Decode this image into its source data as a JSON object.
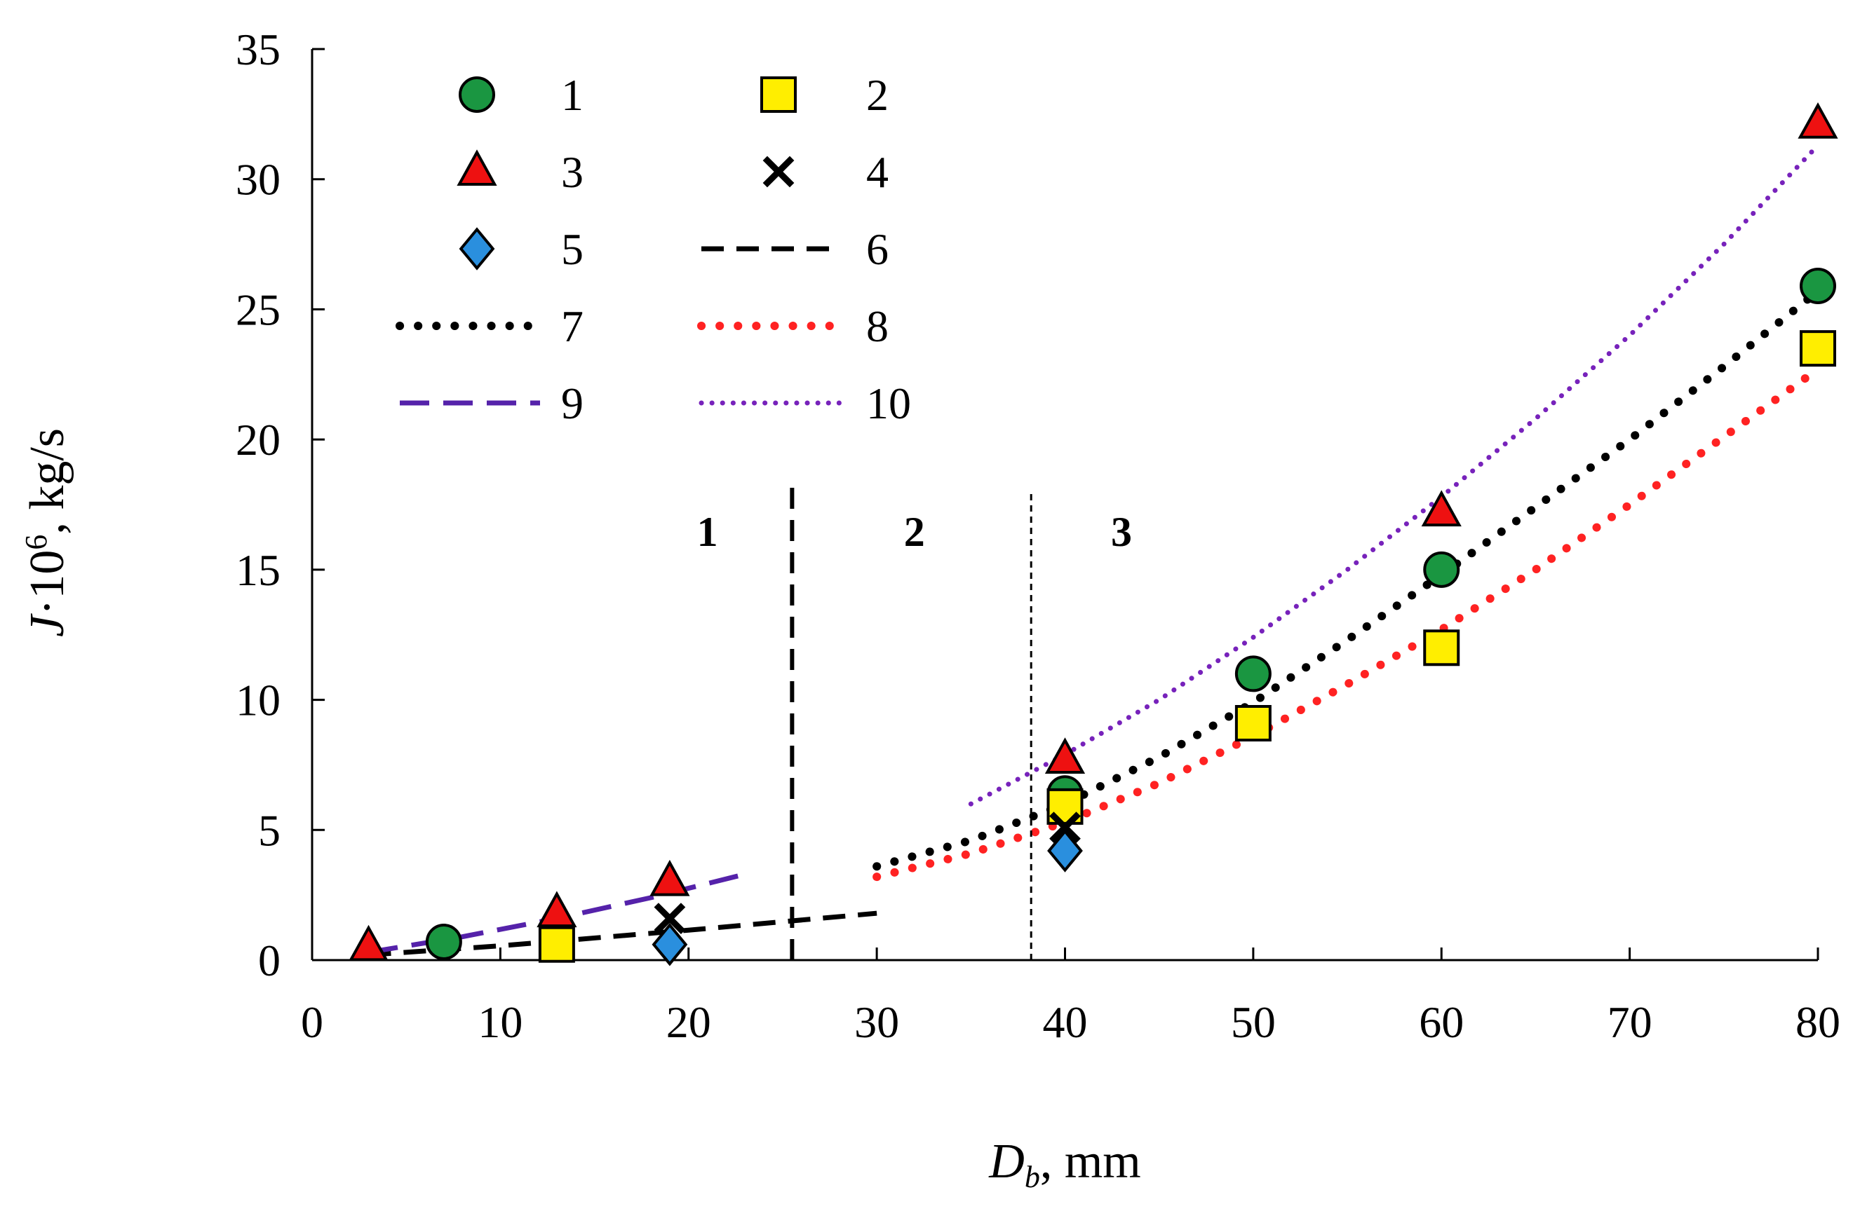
{
  "chart_data": {
    "type": "scatter",
    "xlabel": {
      "italic": "D",
      "sub": "b",
      "rest": ", mm"
    },
    "ylabel": {
      "italic": "J",
      "rest": "·10",
      "sup": "6",
      "tail": ", kg/s"
    },
    "xlim": [
      0,
      80
    ],
    "ylim": [
      0,
      35
    ],
    "xticks": [
      0,
      10,
      20,
      30,
      40,
      50,
      60,
      70,
      80
    ],
    "yticks": [
      0,
      5,
      10,
      15,
      20,
      25,
      30,
      35
    ],
    "grid": false,
    "legend_placement": "top-left",
    "colors": {
      "green": "#1a9641",
      "yellow": "#ffee00",
      "red": "#ee1111",
      "blue": "#2a8fde",
      "black": "#000000",
      "purple": "#5522aa",
      "violet": "#7722bb",
      "line_red": "#ff2222"
    },
    "series": [
      {
        "name": "1",
        "kind": "marker",
        "marker": "circle",
        "fill": "#1a9641",
        "x": [
          7,
          40,
          50,
          60,
          80
        ],
        "y": [
          0.7,
          6.4,
          11.0,
          15.0,
          25.9
        ]
      },
      {
        "name": "2",
        "kind": "marker",
        "marker": "square",
        "fill": "#ffee00",
        "x": [
          13,
          40,
          50,
          60,
          80
        ],
        "y": [
          0.6,
          5.9,
          9.1,
          12.0,
          23.5
        ]
      },
      {
        "name": "3",
        "kind": "marker",
        "marker": "triangle",
        "fill": "#ee1111",
        "x": [
          3,
          13,
          19,
          40,
          60,
          80
        ],
        "y": [
          0.5,
          1.8,
          3.0,
          7.7,
          17.2,
          32.1
        ]
      },
      {
        "name": "4",
        "kind": "marker",
        "marker": "cross",
        "fill": "#000000",
        "x": [
          19,
          40
        ],
        "y": [
          1.6,
          5.1
        ]
      },
      {
        "name": "5",
        "kind": "marker",
        "marker": "diamond",
        "fill": "#2a8fde",
        "x": [
          19,
          40
        ],
        "y": [
          0.6,
          4.2
        ]
      },
      {
        "name": "6",
        "kind": "line",
        "dash": "dash",
        "color": "#000000",
        "x": [
          3,
          10,
          20,
          30
        ],
        "y": [
          0.2,
          0.55,
          1.15,
          1.8
        ]
      },
      {
        "name": "7",
        "kind": "line",
        "dash": "dot",
        "color": "#000000",
        "x": [
          30,
          35,
          40,
          45,
          50,
          55,
          60,
          65,
          70,
          75,
          80
        ],
        "y": [
          3.6,
          4.6,
          6.0,
          7.8,
          9.9,
          12.3,
          14.8,
          17.4,
          20.0,
          22.8,
          25.7
        ]
      },
      {
        "name": "8",
        "kind": "line",
        "dash": "dot",
        "color": "#ff2222",
        "x": [
          30,
          35,
          40,
          45,
          50,
          55,
          60,
          65,
          70,
          75,
          80
        ],
        "y": [
          3.2,
          4.1,
          5.3,
          6.8,
          8.6,
          10.6,
          12.7,
          15.0,
          17.5,
          20.1,
          22.7
        ]
      },
      {
        "name": "9",
        "kind": "line",
        "dash": "longdash",
        "color": "#5522aa",
        "x": [
          3,
          8,
          13,
          18,
          23
        ],
        "y": [
          0.3,
          0.9,
          1.6,
          2.4,
          3.3
        ]
      },
      {
        "name": "10",
        "kind": "line",
        "dash": "fine",
        "color": "#7722bb",
        "x": [
          35,
          40,
          45,
          50,
          55,
          60,
          65,
          70,
          75,
          80
        ],
        "y": [
          6.0,
          7.9,
          10.0,
          12.4,
          15.0,
          17.8,
          20.8,
          24.0,
          27.5,
          31.3
        ]
      }
    ],
    "region_dividers": [
      {
        "x": 25.5,
        "style": "dash",
        "y_top": 18.3
      },
      {
        "x": 38.2,
        "style": "fine-dash",
        "y_top": 18.0
      }
    ],
    "region_labels": [
      {
        "text": "1",
        "x": 21,
        "y": 16.5
      },
      {
        "text": "2",
        "x": 32,
        "y": 16.5
      },
      {
        "text": "3",
        "x": 43,
        "y": 16.5
      }
    ]
  }
}
